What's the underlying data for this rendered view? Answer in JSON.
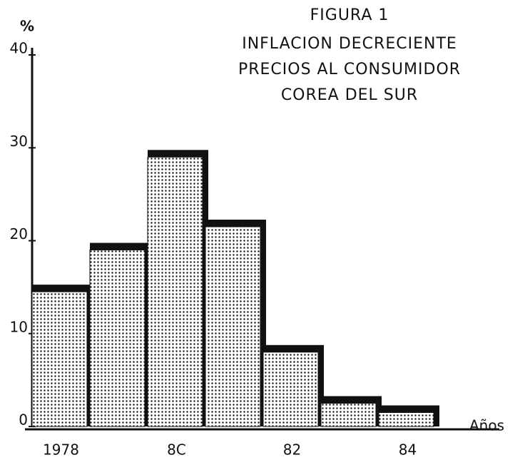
{
  "chart_data": {
    "type": "bar",
    "title": [
      "FIGURA 1",
      "INFLACION DECRECIENTE",
      "PRECIOS AL CONSUMIDOR",
      "COREA DEL SUR"
    ],
    "y_label": "%",
    "x_label": "Años",
    "categories": [
      "1978",
      null,
      "8C",
      null,
      "82",
      null,
      "84"
    ],
    "values": [
      14.5,
      19,
      29,
      21.5,
      8,
      2.5,
      1.5
    ],
    "color": "#111111",
    "ylim": [
      0,
      40
    ],
    "yticks": [
      0,
      10,
      20,
      30,
      40
    ],
    "grid": false
  }
}
